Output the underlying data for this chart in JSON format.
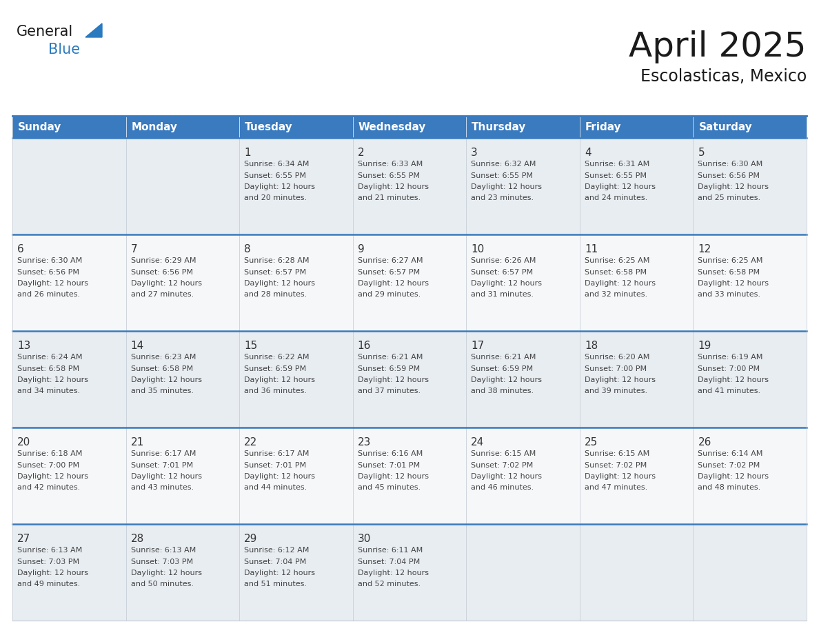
{
  "title": "April 2025",
  "subtitle": "Escolasticas, Mexico",
  "days_of_week": [
    "Sunday",
    "Monday",
    "Tuesday",
    "Wednesday",
    "Thursday",
    "Friday",
    "Saturday"
  ],
  "header_bg": "#3a7abf",
  "header_text": "#ffffff",
  "row_bg_odd": "#e8edf2",
  "row_bg_even": "#f5f7f9",
  "border_color": "#3a7abf",
  "cell_border_color": "#c0c8d0",
  "day_num_color": "#333333",
  "text_color": "#444444",
  "logo_general_color": "#1a1a1a",
  "logo_blue_color": "#2a7abf",
  "title_color": "#1a1a1a",
  "weeks": [
    [
      {
        "day": null,
        "info": null
      },
      {
        "day": null,
        "info": null
      },
      {
        "day": 1,
        "info": "Sunrise: 6:34 AM\nSunset: 6:55 PM\nDaylight: 12 hours\nand 20 minutes."
      },
      {
        "day": 2,
        "info": "Sunrise: 6:33 AM\nSunset: 6:55 PM\nDaylight: 12 hours\nand 21 minutes."
      },
      {
        "day": 3,
        "info": "Sunrise: 6:32 AM\nSunset: 6:55 PM\nDaylight: 12 hours\nand 23 minutes."
      },
      {
        "day": 4,
        "info": "Sunrise: 6:31 AM\nSunset: 6:55 PM\nDaylight: 12 hours\nand 24 minutes."
      },
      {
        "day": 5,
        "info": "Sunrise: 6:30 AM\nSunset: 6:56 PM\nDaylight: 12 hours\nand 25 minutes."
      }
    ],
    [
      {
        "day": 6,
        "info": "Sunrise: 6:30 AM\nSunset: 6:56 PM\nDaylight: 12 hours\nand 26 minutes."
      },
      {
        "day": 7,
        "info": "Sunrise: 6:29 AM\nSunset: 6:56 PM\nDaylight: 12 hours\nand 27 minutes."
      },
      {
        "day": 8,
        "info": "Sunrise: 6:28 AM\nSunset: 6:57 PM\nDaylight: 12 hours\nand 28 minutes."
      },
      {
        "day": 9,
        "info": "Sunrise: 6:27 AM\nSunset: 6:57 PM\nDaylight: 12 hours\nand 29 minutes."
      },
      {
        "day": 10,
        "info": "Sunrise: 6:26 AM\nSunset: 6:57 PM\nDaylight: 12 hours\nand 31 minutes."
      },
      {
        "day": 11,
        "info": "Sunrise: 6:25 AM\nSunset: 6:58 PM\nDaylight: 12 hours\nand 32 minutes."
      },
      {
        "day": 12,
        "info": "Sunrise: 6:25 AM\nSunset: 6:58 PM\nDaylight: 12 hours\nand 33 minutes."
      }
    ],
    [
      {
        "day": 13,
        "info": "Sunrise: 6:24 AM\nSunset: 6:58 PM\nDaylight: 12 hours\nand 34 minutes."
      },
      {
        "day": 14,
        "info": "Sunrise: 6:23 AM\nSunset: 6:58 PM\nDaylight: 12 hours\nand 35 minutes."
      },
      {
        "day": 15,
        "info": "Sunrise: 6:22 AM\nSunset: 6:59 PM\nDaylight: 12 hours\nand 36 minutes."
      },
      {
        "day": 16,
        "info": "Sunrise: 6:21 AM\nSunset: 6:59 PM\nDaylight: 12 hours\nand 37 minutes."
      },
      {
        "day": 17,
        "info": "Sunrise: 6:21 AM\nSunset: 6:59 PM\nDaylight: 12 hours\nand 38 minutes."
      },
      {
        "day": 18,
        "info": "Sunrise: 6:20 AM\nSunset: 7:00 PM\nDaylight: 12 hours\nand 39 minutes."
      },
      {
        "day": 19,
        "info": "Sunrise: 6:19 AM\nSunset: 7:00 PM\nDaylight: 12 hours\nand 41 minutes."
      }
    ],
    [
      {
        "day": 20,
        "info": "Sunrise: 6:18 AM\nSunset: 7:00 PM\nDaylight: 12 hours\nand 42 minutes."
      },
      {
        "day": 21,
        "info": "Sunrise: 6:17 AM\nSunset: 7:01 PM\nDaylight: 12 hours\nand 43 minutes."
      },
      {
        "day": 22,
        "info": "Sunrise: 6:17 AM\nSunset: 7:01 PM\nDaylight: 12 hours\nand 44 minutes."
      },
      {
        "day": 23,
        "info": "Sunrise: 6:16 AM\nSunset: 7:01 PM\nDaylight: 12 hours\nand 45 minutes."
      },
      {
        "day": 24,
        "info": "Sunrise: 6:15 AM\nSunset: 7:02 PM\nDaylight: 12 hours\nand 46 minutes."
      },
      {
        "day": 25,
        "info": "Sunrise: 6:15 AM\nSunset: 7:02 PM\nDaylight: 12 hours\nand 47 minutes."
      },
      {
        "day": 26,
        "info": "Sunrise: 6:14 AM\nSunset: 7:02 PM\nDaylight: 12 hours\nand 48 minutes."
      }
    ],
    [
      {
        "day": 27,
        "info": "Sunrise: 6:13 AM\nSunset: 7:03 PM\nDaylight: 12 hours\nand 49 minutes."
      },
      {
        "day": 28,
        "info": "Sunrise: 6:13 AM\nSunset: 7:03 PM\nDaylight: 12 hours\nand 50 minutes."
      },
      {
        "day": 29,
        "info": "Sunrise: 6:12 AM\nSunset: 7:04 PM\nDaylight: 12 hours\nand 51 minutes."
      },
      {
        "day": 30,
        "info": "Sunrise: 6:11 AM\nSunset: 7:04 PM\nDaylight: 12 hours\nand 52 minutes."
      },
      {
        "day": null,
        "info": null
      },
      {
        "day": null,
        "info": null
      },
      {
        "day": null,
        "info": null
      }
    ]
  ]
}
